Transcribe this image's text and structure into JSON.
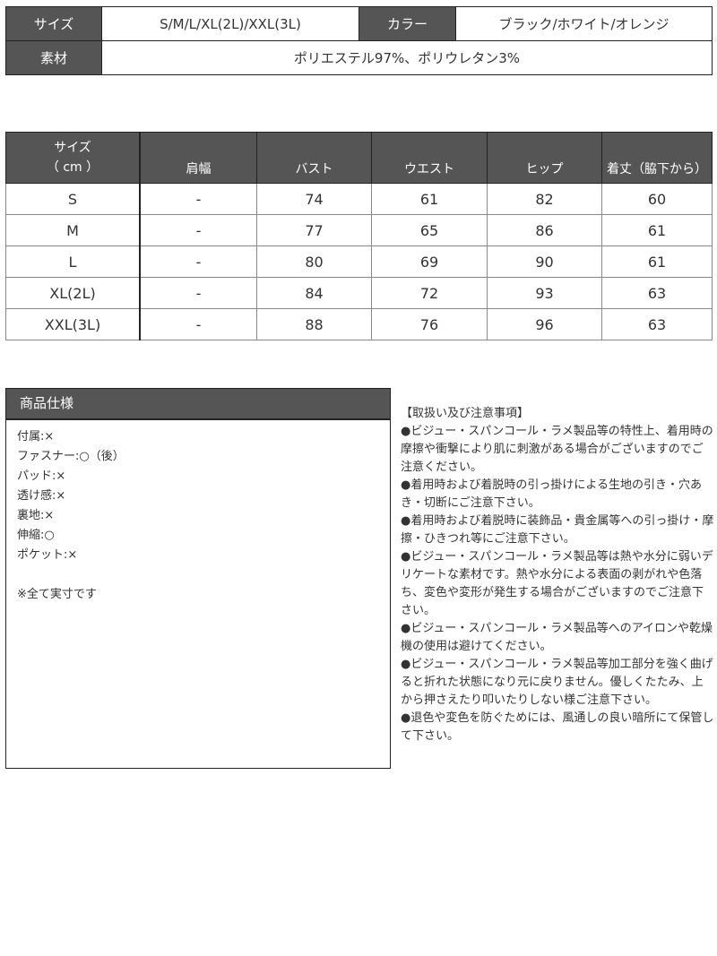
{
  "info": {
    "size_label": "サイズ",
    "size_value": "S/M/L/XL(2L)/XXL(3L)",
    "color_label": "カラー",
    "color_value": "ブラック/ホワイト/オレンジ",
    "material_label": "素材",
    "material_value": "ポリエステル97%、ポリウレタン3%"
  },
  "size_table": {
    "headers": [
      "サイズ\n（ cm ）",
      "肩幅",
      "バスト",
      "ウエスト",
      "ヒップ",
      "着丈（脇下から）"
    ],
    "rows": [
      [
        "S",
        "-",
        "74",
        "61",
        "82",
        "60"
      ],
      [
        "M",
        "-",
        "77",
        "65",
        "86",
        "61"
      ],
      [
        "L",
        "-",
        "80",
        "69",
        "90",
        "61"
      ],
      [
        "XL(2L)",
        "-",
        "84",
        "72",
        "93",
        "63"
      ],
      [
        "XXL(3L)",
        "-",
        "88",
        "76",
        "96",
        "63"
      ]
    ]
  },
  "spec": {
    "title": "商品仕様",
    "items": [
      "付属:×",
      "ファスナー:○（後）",
      "パッド:×",
      "透け感:×",
      "裏地:×",
      "伸縮:○",
      "ポケット:×"
    ],
    "note": "※全て実寸です"
  },
  "notes": {
    "title": "【取扱い及び注意事項】",
    "items": [
      "●ビジュー・スパンコール・ラメ製品等の特性上、着用時の摩擦や衝撃により肌に刺激がある場合がございますのでご注意ください。",
      "●着用時および着脱時の引っ掛けによる生地の引き・穴あき・切断にご注意下さい。",
      "●着用時および着脱時に装飾品・貴金属等への引っ掛け・摩擦・ひきつれ等にご注意下さい。",
      "●ビジュー・スパンコール・ラメ製品等は熱や水分に弱いデリケートな素材です。熱や水分による表面の剥がれや色落ち、変色や変形が発生する場合がございますのでご注意下さい。",
      "●ビジュー・スパンコール・ラメ製品等へのアイロンや乾燥機の使用は避けてください。",
      "●ビジュー・スパンコール・ラメ製品等加工部分を強く曲げると折れた状態になり元に戻りません。優しくたたみ、上から押さえたり叩いたりしない様ご注意下さい。",
      "●退色や変色を防ぐためには、風通しの良い暗所にて保管して下さい。"
    ]
  }
}
